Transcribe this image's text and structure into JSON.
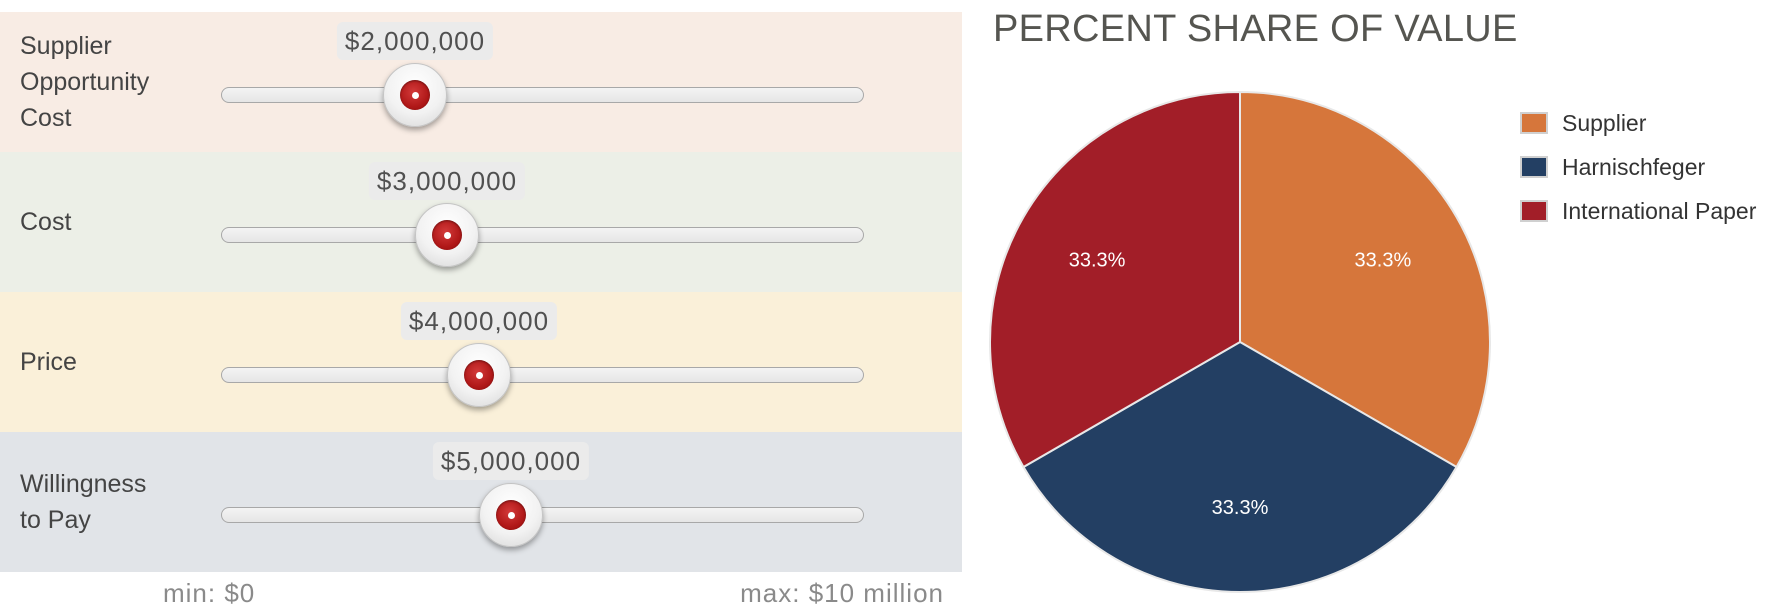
{
  "sliders": {
    "min_pct": 0,
    "max_pct": 10000000,
    "range_min_label": "min: $0",
    "range_max_label": "max: $10 million",
    "items": [
      {
        "name": "supplier-opportunity-cost",
        "label": "Supplier\nOpportunity\nCost",
        "value": 2000000,
        "value_text": "$2,000,000",
        "bg": "#f8ece4"
      },
      {
        "name": "cost",
        "label": "Cost",
        "value": 3000000,
        "value_text": "$3,000,000",
        "bg": "#ecefe7"
      },
      {
        "name": "price",
        "label": "Price",
        "value": 4000000,
        "value_text": "$4,000,000",
        "bg": "#faf0d9"
      },
      {
        "name": "willingness-to-pay",
        "label": "Willingness\nto Pay",
        "value": 5000000,
        "value_text": "$5,000,000",
        "bg": "#e1e4e8"
      }
    ]
  },
  "chart_data": {
    "type": "pie",
    "title": "PERCENT SHARE OF VALUE",
    "legend_position": "top-right",
    "slices": [
      {
        "name": "Supplier",
        "value": 33.3,
        "label": "33.3%",
        "color": "#d6763b"
      },
      {
        "name": "Harnischfeger",
        "value": 33.3,
        "label": "33.3%",
        "color": "#233f63"
      },
      {
        "name": "International Paper",
        "value": 33.3,
        "label": "33.3%",
        "color": "#a21e28"
      }
    ]
  }
}
